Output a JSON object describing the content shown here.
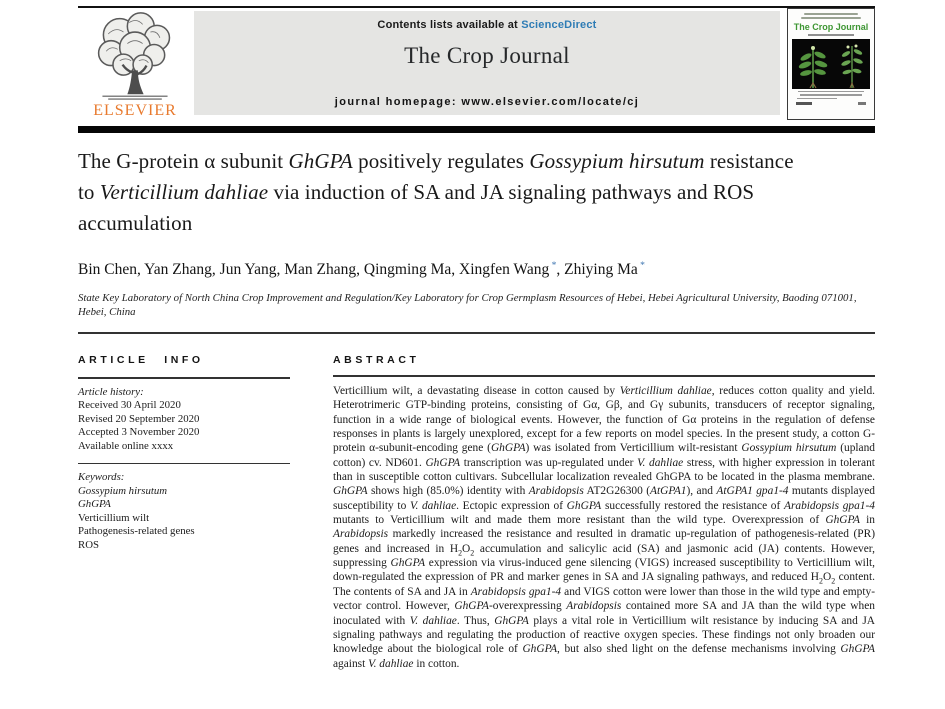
{
  "header": {
    "contents_prefix": "Contents lists available at ",
    "sciencedirect_label": "ScienceDirect",
    "journal_title": "The Crop Journal",
    "homepage_label": "journal homepage: www.elsevier.com/locate/cj",
    "elsevier_label": "ELSEVIER",
    "cover_title": "The Crop Journal"
  },
  "article": {
    "title_segments": [
      {
        "t": "The G-protein α subunit "
      },
      {
        "t": "GhGPA",
        "i": true
      },
      {
        "t": " positively regulates "
      },
      {
        "t": "Gossypium hirsutum",
        "i": true
      },
      {
        "t": " resistance to "
      },
      {
        "t": "Verticillium dahliae",
        "i": true
      },
      {
        "t": " via induction of SA and JA signaling pathways and ROS accumulation"
      }
    ],
    "author_segments": [
      {
        "t": "Bin Chen, Yan Zhang, Jun Yang, Man Zhang, Qingming Ma, Xingfen Wang"
      },
      {
        "t": " *",
        "sup": true,
        "c": "accent"
      },
      {
        "t": ", Zhiying Ma"
      },
      {
        "t": " *",
        "sup": true,
        "c": "accent"
      }
    ],
    "affiliation": "State Key Laboratory of North China Crop Improvement and Regulation/Key Laboratory for Crop Germplasm Resources of Hebei, Hebei Agricultural University, Baoding 071001, Hebei, China"
  },
  "info": {
    "heading": "ARTICLE INFO",
    "history_label": "Article history:",
    "history": [
      "Received 30 April 2020",
      "Revised 20 September 2020",
      "Accepted 3 November 2020",
      "Available online xxxx"
    ],
    "keywords_label": "Keywords:",
    "keywords": [
      {
        "t": "Gossypium hirsutum",
        "i": true
      },
      {
        "t": "GhGPA",
        "i": true
      },
      {
        "t": "Verticillium wilt"
      },
      {
        "t": "Pathogenesis-related genes"
      },
      {
        "t": "ROS"
      }
    ]
  },
  "abstract": {
    "heading": "ABSTRACT",
    "segments": [
      {
        "t": "Verticillium wilt, a devastating disease in cotton caused by "
      },
      {
        "t": "Verticillium dahliae",
        "i": true
      },
      {
        "t": ", reduces cotton quality and yield. Heterotrimeric GTP-binding proteins, consisting of Gα, Gβ, and Gγ subunits, transducers of receptor signaling, function in a wide range of biological events. However, the function of Gα proteins in the regulation of defense responses in plants is largely unexplored, except for a few reports on model species. In the present study, a cotton G-protein α-subunit-encoding gene ("
      },
      {
        "t": "GhGPA",
        "i": true
      },
      {
        "t": ") was isolated from Verticillium wilt-resistant "
      },
      {
        "t": "Gossypium hirsutum",
        "i": true
      },
      {
        "t": " (upland cotton) cv. ND601. "
      },
      {
        "t": "GhGPA",
        "i": true
      },
      {
        "t": " transcription was up-regulated under "
      },
      {
        "t": "V. dahliae",
        "i": true
      },
      {
        "t": " stress, with higher expression in tolerant than in susceptible cotton cultivars. Subcellular localization revealed GhGPA to be located in the plasma membrane. "
      },
      {
        "t": "GhGPA",
        "i": true
      },
      {
        "t": " shows high (85.0%) identity with "
      },
      {
        "t": "Arabidopsis",
        "i": true
      },
      {
        "t": " AT2G26300 ("
      },
      {
        "t": "AtGPA1",
        "i": true
      },
      {
        "t": "), and "
      },
      {
        "t": "AtGPA1 gpa1-4",
        "i": true
      },
      {
        "t": " mutants displayed susceptibility to "
      },
      {
        "t": "V. dahliae",
        "i": true
      },
      {
        "t": ". Ectopic expression of "
      },
      {
        "t": "GhGPA",
        "i": true
      },
      {
        "t": " successfully restored the resistance of "
      },
      {
        "t": "Arabidopsis gpa1-4",
        "i": true
      },
      {
        "t": " mutants to Verticillium wilt and made them more resistant than the wild type. Overexpression of "
      },
      {
        "t": "GhGPA",
        "i": true
      },
      {
        "t": " in "
      },
      {
        "t": "Arabidopsis",
        "i": true
      },
      {
        "t": " markedly increased the resistance and resulted in dramatic up-regulation of pathogenesis-related (PR) genes and increased in H"
      },
      {
        "t": "2",
        "sub": true
      },
      {
        "t": "O"
      },
      {
        "t": "2",
        "sub": true
      },
      {
        "t": " accumulation and salicylic acid (SA) and jasmonic acid (JA) contents. However, suppressing "
      },
      {
        "t": "GhGPA",
        "i": true
      },
      {
        "t": " expression via virus-induced gene silencing (VIGS) increased susceptibility to Verticillium wilt, down-regulated the expression of PR and marker genes in SA and JA signaling pathways, and reduced H"
      },
      {
        "t": "2",
        "sub": true
      },
      {
        "t": "O"
      },
      {
        "t": "2",
        "sub": true
      },
      {
        "t": " content. The contents of SA and JA in "
      },
      {
        "t": "Arabidopsis gpa1-4",
        "i": true
      },
      {
        "t": " and VIGS cotton were lower than those in the wild type and empty-vector control. However, "
      },
      {
        "t": "GhGPA",
        "i": true
      },
      {
        "t": "-overexpressing "
      },
      {
        "t": "Arabidopsis",
        "i": true
      },
      {
        "t": " contained more SA and JA than the wild type when inoculated with "
      },
      {
        "t": "V. dahliae",
        "i": true
      },
      {
        "t": ". Thus, "
      },
      {
        "t": "GhGPA",
        "i": true
      },
      {
        "t": " plays a vital role in Verticillium wilt resistance by inducing SA and JA signaling pathways and regulating the production of reactive oxygen species. These findings not only broaden our knowledge about the biological role of "
      },
      {
        "t": "GhGPA",
        "i": true
      },
      {
        "t": ", but also shed light on the defense mechanisms involving "
      },
      {
        "t": "GhGPA",
        "i": true
      },
      {
        "t": " against "
      },
      {
        "t": "V. dahliae",
        "i": true
      },
      {
        "t": " in cotton."
      }
    ]
  },
  "colors": {
    "link_blue": "#2e7cb5",
    "elsevier_orange": "#e87a2e",
    "cover_green": "#3e9633",
    "asterisk_blue": "#3b74b0",
    "banner_gray": "#e5e5e3"
  }
}
